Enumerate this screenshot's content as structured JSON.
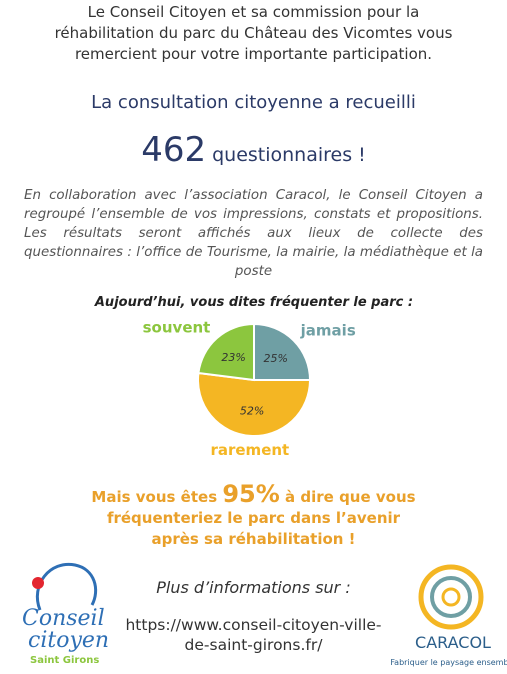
{
  "intro": "Le Conseil Citoyen et sa commission pour la réhabilitation du parc du Château des Vicomtes vous remercient pour votre importante participation.",
  "consultation": "La consultation citoyenne a recueilli",
  "count": {
    "number": "462",
    "unit": "questionnaires !"
  },
  "collaboration": "En collaboration avec l’association Caracol, le Conseil Citoyen a regroupé l’ensemble de vos impressions, constats et propositions. Les résultats seront affichés aux lieux de collecte des questionnaires : l’office de Tourisme, la mairie, la médiathèque et la poste",
  "chart_data": {
    "type": "pie",
    "title": "Aujourd’hui, vous dites fréquenter le parc :",
    "categories": [
      "jamais",
      "rarement",
      "souvent"
    ],
    "values": [
      25,
      52,
      23
    ],
    "value_labels": [
      "25%",
      "52%",
      "23%"
    ],
    "colors": [
      "#6f9fa4",
      "#f4b623",
      "#8cc63e"
    ]
  },
  "future": {
    "before": "Mais vous êtes",
    "highlight": "95%",
    "after": "à dire que vous fréquenteriez le parc dans l’avenir après sa réhabilitation !"
  },
  "more_info": "Plus d’informations sur :",
  "url": "https://www.conseil-citoyen-ville-de-saint-girons.fr/",
  "logos": {
    "left": {
      "line1": "Conseil",
      "line2": "citoyen",
      "place": "Saint Girons"
    },
    "right": {
      "name": "CARACOL",
      "tagline": "Fabriquer le paysage ensemble"
    }
  }
}
